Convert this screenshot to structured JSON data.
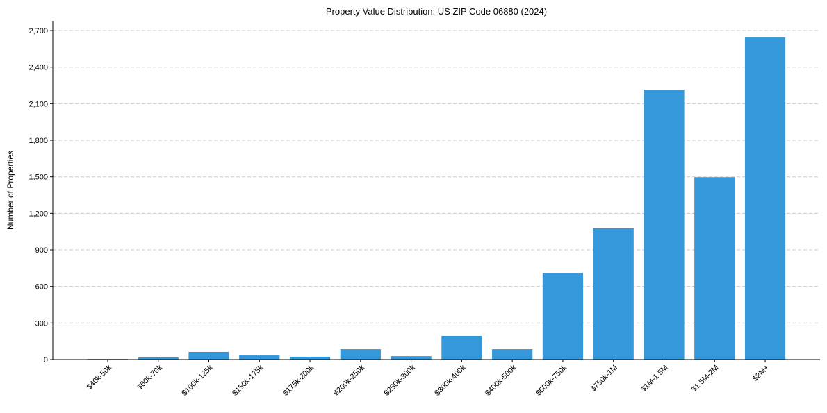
{
  "chart_data": {
    "type": "bar",
    "title": "Property Value Distribution: US ZIP Code 06880 (2024)",
    "xlabel": "",
    "ylabel": "Number of Properties",
    "categories": [
      "$40k-50k",
      "$60k-70k",
      "$100k-125k",
      "$150k-175k",
      "$175k-200k",
      "$200k-250k",
      "$250k-300k",
      "$300k-400k",
      "$400k-500k",
      "$500k-750k",
      "$750k-1M",
      "$1M-1.5M",
      "$1.5M-2M",
      "$2M+"
    ],
    "values": [
      5,
      17,
      63,
      34,
      23,
      85,
      28,
      194,
      85,
      712,
      1077,
      2216,
      1497,
      2643
    ],
    "ylim": [
      0,
      2780
    ],
    "yticks": [
      0,
      300,
      600,
      900,
      1200,
      1500,
      1800,
      2100,
      2400,
      2700
    ],
    "ytick_labels": [
      "0",
      "300",
      "600",
      "900",
      "1,200",
      "1,500",
      "1,800",
      "2,100",
      "2,400",
      "2,700"
    ],
    "grid": "y dashed",
    "bar_color": "#3498db"
  }
}
